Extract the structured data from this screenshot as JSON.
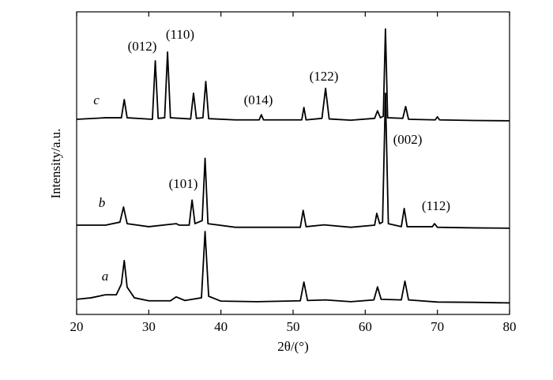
{
  "chart_data": {
    "type": "line",
    "xlabel": "2θ/(°)",
    "ylabel": "Intensity/a.u.",
    "xlim": [
      20,
      80
    ],
    "xticks": [
      20,
      30,
      40,
      50,
      60,
      70,
      80
    ],
    "ylim": [
      0,
      100
    ],
    "series": [
      {
        "name": "a",
        "color": "#000000",
        "x": [
          20,
          22,
          24,
          25.5,
          26.2,
          26.6,
          27.0,
          28,
          30,
          33,
          33.8,
          35,
          37.3,
          37.8,
          38.3,
          40,
          45,
          51.0,
          51.5,
          52.0,
          54.5,
          58,
          61.2,
          61.7,
          62.2,
          65.0,
          65.5,
          66.0,
          70,
          75,
          80
        ],
        "values": [
          5,
          5.5,
          6.5,
          6.5,
          10,
          17.8,
          9,
          5.5,
          4.5,
          4.5,
          5.8,
          4.6,
          5.5,
          27.4,
          6,
          4.4,
          4.2,
          4.5,
          10.7,
          4.6,
          4.8,
          4.2,
          4.8,
          9.1,
          5,
          4.8,
          11,
          4.8,
          4.1,
          4,
          3.8
        ]
      },
      {
        "name": "b",
        "color": "#000000",
        "x": [
          20,
          24,
          26.0,
          26.5,
          27.0,
          30,
          33.8,
          34.2,
          35.6,
          36.0,
          36.4,
          37.4,
          37.8,
          38.2,
          42,
          51.0,
          51.4,
          51.8,
          54.3,
          58,
          61.3,
          61.6,
          62.0,
          62.4,
          62.8,
          63.2,
          65.0,
          65.4,
          65.8,
          69.3,
          69.6,
          70,
          75,
          80
        ],
        "values": [
          29.5,
          29.5,
          30.5,
          35.5,
          30,
          29,
          30,
          29.5,
          29.5,
          37.8,
          30,
          31,
          51.6,
          30,
          28.8,
          28.8,
          34.4,
          29,
          29.6,
          28.8,
          29.5,
          33.4,
          30,
          30.5,
          73.1,
          30,
          29,
          35,
          29,
          29,
          30,
          28.8,
          28.6,
          28.5
        ]
      },
      {
        "name": "c",
        "color": "#000000",
        "x": [
          20,
          24,
          26.2,
          26.6,
          27.0,
          30.5,
          30.9,
          31.3,
          32.2,
          32.6,
          33.0,
          35.8,
          36.2,
          36.6,
          37.5,
          37.9,
          38.3,
          42,
          45.3,
          45.6,
          45.9,
          51.2,
          51.5,
          51.8,
          54.0,
          54.5,
          55.0,
          58,
          61.3,
          61.7,
          62.1,
          62.5,
          62.8,
          63.1,
          65.2,
          65.6,
          66.0,
          69.7,
          70,
          70.3,
          75,
          80
        ],
        "values": [
          64.5,
          65,
          65,
          71,
          65,
          64.5,
          83.8,
          64.8,
          65,
          86.7,
          65,
          64.6,
          73.1,
          64.8,
          65,
          77,
          64.7,
          64.3,
          64.3,
          66,
          64.3,
          64.3,
          68.4,
          64.3,
          64.8,
          74.7,
          64.6,
          64.2,
          64.8,
          67.3,
          65,
          65.5,
          94.3,
          65,
          64.8,
          68.7,
          64.5,
          64.3,
          65.3,
          64.3,
          64.1,
          64
        ]
      }
    ],
    "annotations": [
      "(012)",
      "(110)",
      "(014)",
      "(122)",
      "(101)",
      "(002)",
      "(112)"
    ]
  }
}
